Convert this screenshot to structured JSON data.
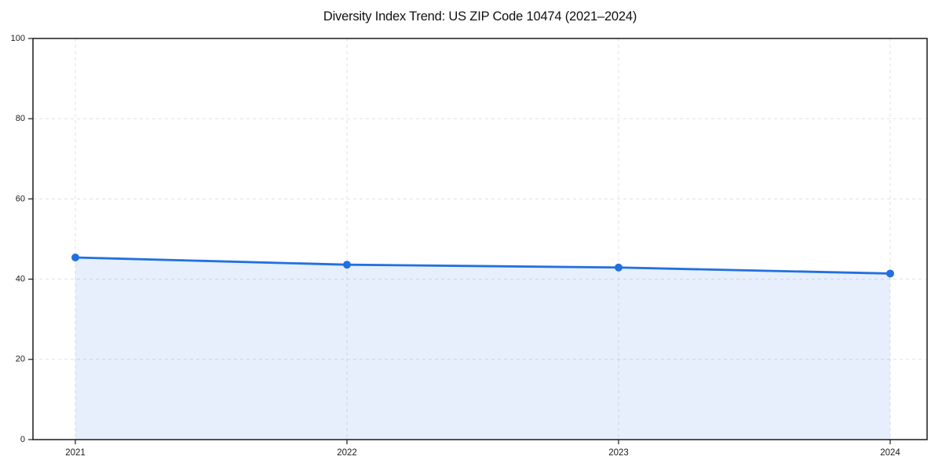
{
  "figure": {
    "background": "#ffffff"
  },
  "chart_data": {
    "type": "area",
    "title": "Diversity Index Trend: US ZIP Code 10474 (2021–2024)",
    "x": [
      2021,
      2022,
      2023,
      2024
    ],
    "xticklabels": [
      "2021",
      "2022",
      "2023",
      "2024"
    ],
    "series": [
      {
        "name": "Diversity Index",
        "values": [
          45.4,
          43.6,
          42.9,
          41.4
        ]
      }
    ],
    "xlabel": "",
    "ylabel": "",
    "ylim": [
      0,
      100
    ],
    "yticks": [
      0,
      20,
      40,
      60,
      80,
      100
    ],
    "grid": true,
    "grid_style": "dashed",
    "legend_position": "none",
    "line_color": "#2170e0",
    "marker": "circle",
    "fill_color": "#2170e0",
    "fill_opacity": 0.11,
    "grid_color": "#e1e1e1",
    "spine_color": "#1a1a1a",
    "tick_label_color": "#1a1a1a"
  }
}
